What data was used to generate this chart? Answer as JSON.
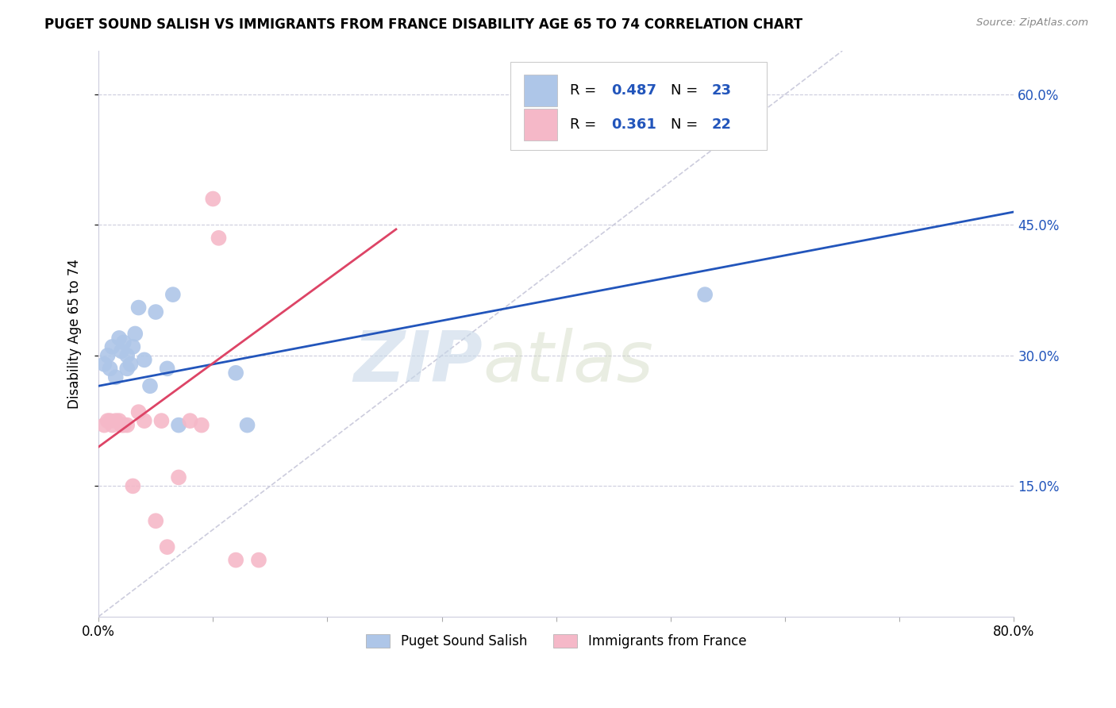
{
  "title": "PUGET SOUND SALISH VS IMMIGRANTS FROM FRANCE DISABILITY AGE 65 TO 74 CORRELATION CHART",
  "source": "Source: ZipAtlas.com",
  "ylabel": "Disability Age 65 to 74",
  "xlim": [
    0.0,
    0.8
  ],
  "ylim": [
    0.0,
    0.65
  ],
  "xtick_positions": [
    0.0,
    0.1,
    0.2,
    0.3,
    0.4,
    0.5,
    0.6,
    0.7,
    0.8
  ],
  "xticklabels": [
    "0.0%",
    "",
    "",
    "",
    "",
    "",
    "",
    "",
    "80.0%"
  ],
  "ytick_positions": [
    0.15,
    0.3,
    0.45,
    0.6
  ],
  "ytick_labels": [
    "15.0%",
    "30.0%",
    "45.0%",
    "60.0%"
  ],
  "watermark_zip": "ZIP",
  "watermark_atlas": "atlas",
  "blue_color": "#aec6e8",
  "pink_color": "#f5b8c8",
  "blue_line_color": "#2255bb",
  "pink_line_color": "#dd4466",
  "diag_color": "#ccccdd",
  "blue_scatter_x": [
    0.005,
    0.008,
    0.01,
    0.012,
    0.015,
    0.018,
    0.02,
    0.022,
    0.025,
    0.025,
    0.028,
    0.03,
    0.032,
    0.035,
    0.04,
    0.045,
    0.05,
    0.06,
    0.065,
    0.07,
    0.12,
    0.13,
    0.53
  ],
  "blue_scatter_y": [
    0.29,
    0.3,
    0.285,
    0.31,
    0.275,
    0.32,
    0.305,
    0.315,
    0.3,
    0.285,
    0.29,
    0.31,
    0.325,
    0.355,
    0.295,
    0.265,
    0.35,
    0.285,
    0.37,
    0.22,
    0.28,
    0.22,
    0.37
  ],
  "pink_scatter_x": [
    0.005,
    0.008,
    0.01,
    0.012,
    0.015,
    0.018,
    0.02,
    0.022,
    0.025,
    0.03,
    0.035,
    0.04,
    0.05,
    0.055,
    0.06,
    0.07,
    0.08,
    0.09,
    0.1,
    0.105,
    0.12,
    0.14
  ],
  "pink_scatter_y": [
    0.22,
    0.225,
    0.225,
    0.22,
    0.225,
    0.225,
    0.22,
    0.22,
    0.22,
    0.15,
    0.235,
    0.225,
    0.11,
    0.225,
    0.08,
    0.16,
    0.225,
    0.22,
    0.48,
    0.435,
    0.065,
    0.065
  ],
  "blue_trend_x": [
    0.0,
    0.8
  ],
  "blue_trend_y": [
    0.265,
    0.465
  ],
  "pink_trend_x": [
    0.0,
    0.26
  ],
  "pink_trend_y": [
    0.195,
    0.445
  ],
  "legend_items": [
    {
      "color": "#aec6e8",
      "r": "0.487",
      "n": "23"
    },
    {
      "color": "#f5b8c8",
      "r": "0.361",
      "n": "22"
    }
  ],
  "bottom_legend": [
    {
      "color": "#aec6e8",
      "label": "Puget Sound Salish"
    },
    {
      "color": "#f5b8c8",
      "label": "Immigrants from France"
    }
  ]
}
